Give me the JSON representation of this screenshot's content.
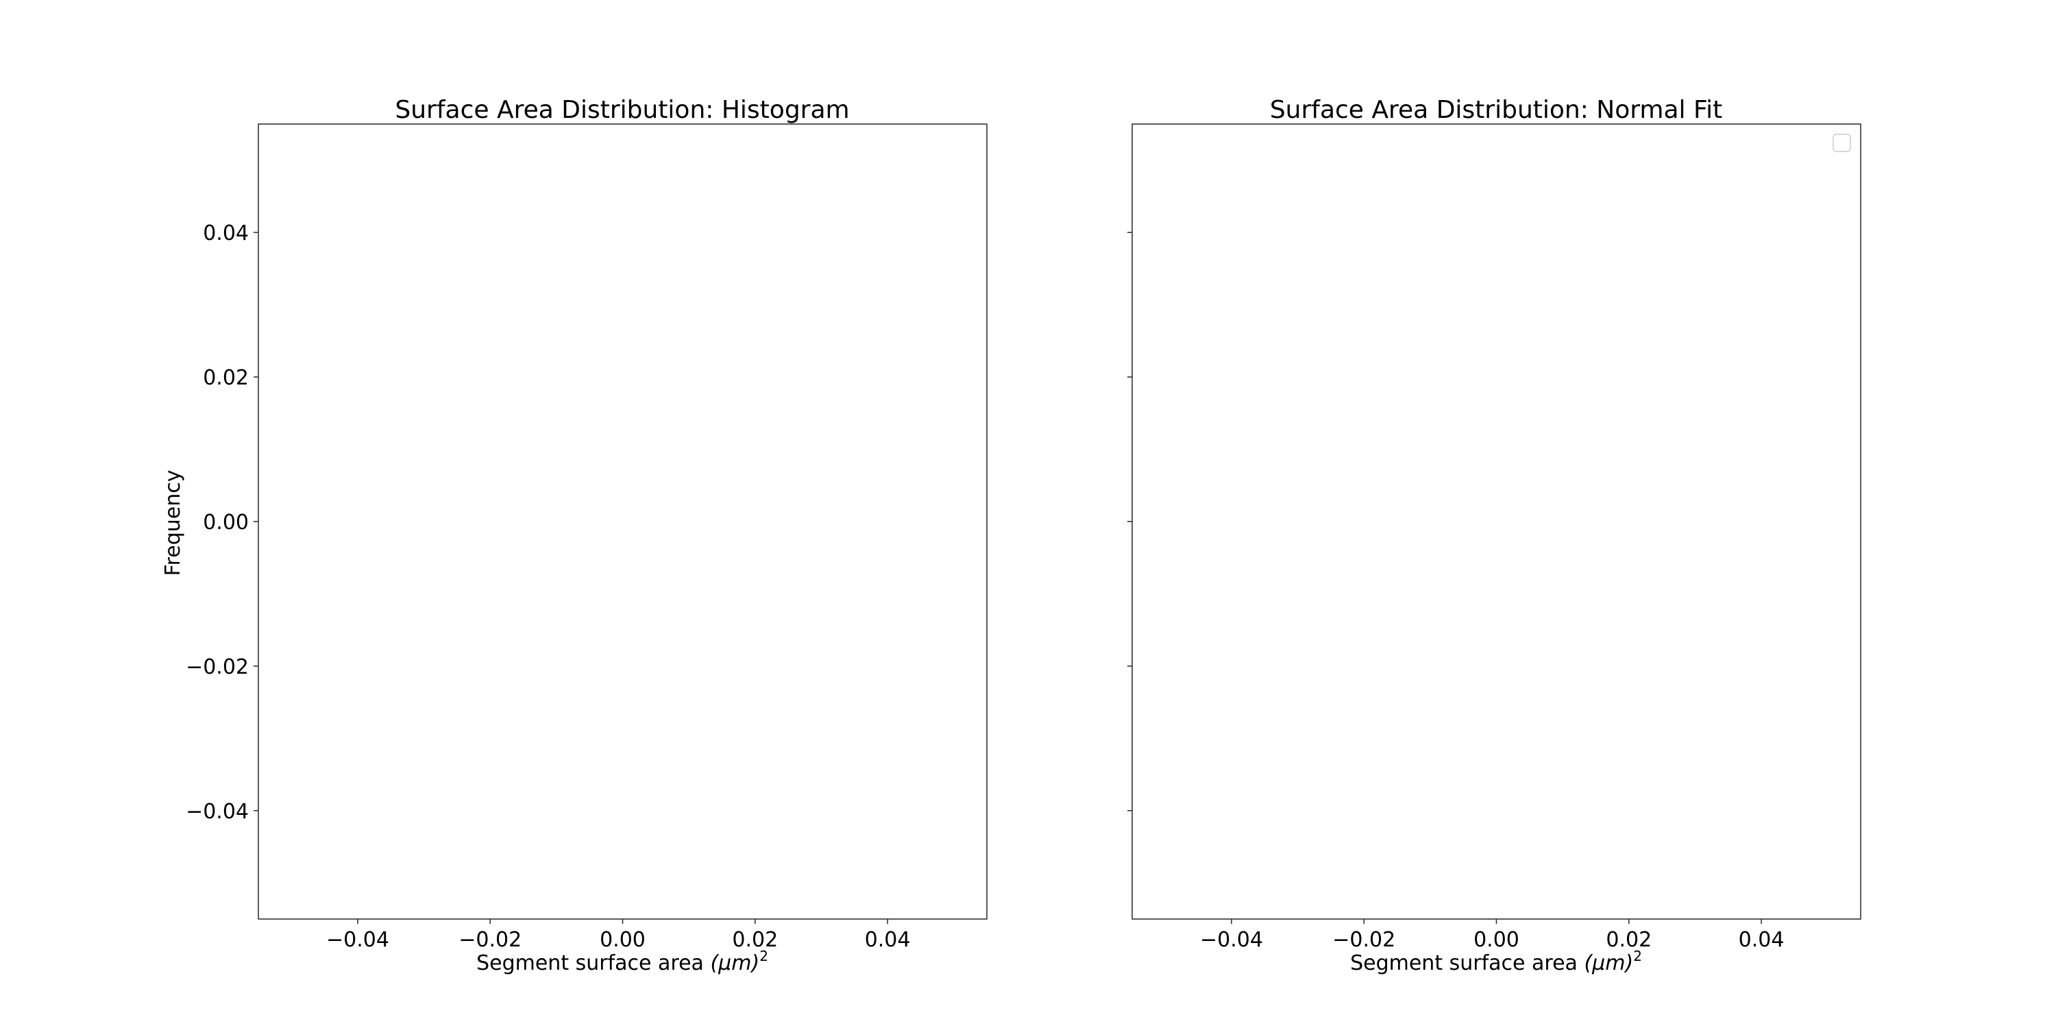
{
  "chart_data": [
    {
      "type": "bar",
      "title": "Surface Area Distribution: Histogram",
      "xlabel": "Segment surface area ",
      "xlabel_unit": "(μm)",
      "xlabel_superscript": "2",
      "ylabel": "Frequency",
      "xlim": [
        -0.055,
        0.055
      ],
      "ylim": [
        -0.055,
        0.055
      ],
      "xticks": [
        -0.04,
        -0.02,
        0.0,
        0.02,
        0.04
      ],
      "xtick_labels": [
        "−0.04",
        "−0.02",
        "0.00",
        "0.02",
        "0.04"
      ],
      "yticks": [
        0.04,
        0.02,
        0.0,
        -0.02,
        -0.04
      ],
      "ytick_labels": [
        "0.04",
        "0.02",
        "0.00",
        "−0.02",
        "−0.04"
      ],
      "show_y_tick_labels": true,
      "series": [],
      "grid": false,
      "legend": false
    },
    {
      "type": "line",
      "title": "Surface Area Distribution: Normal Fit",
      "xlabel": "Segment surface area ",
      "xlabel_unit": "(μm)",
      "xlabel_superscript": "2",
      "ylabel": "",
      "xlim": [
        -0.055,
        0.055
      ],
      "ylim": [
        -0.055,
        0.055
      ],
      "xticks": [
        -0.04,
        -0.02,
        0.0,
        0.02,
        0.04
      ],
      "xtick_labels": [
        "−0.04",
        "−0.02",
        "0.00",
        "0.02",
        "0.04"
      ],
      "yticks": [
        0.04,
        0.02,
        0.0,
        -0.02,
        -0.04
      ],
      "ytick_labels": [],
      "show_y_tick_labels": false,
      "series": [],
      "grid": false,
      "legend": true,
      "legend_placement": "top-right"
    }
  ]
}
